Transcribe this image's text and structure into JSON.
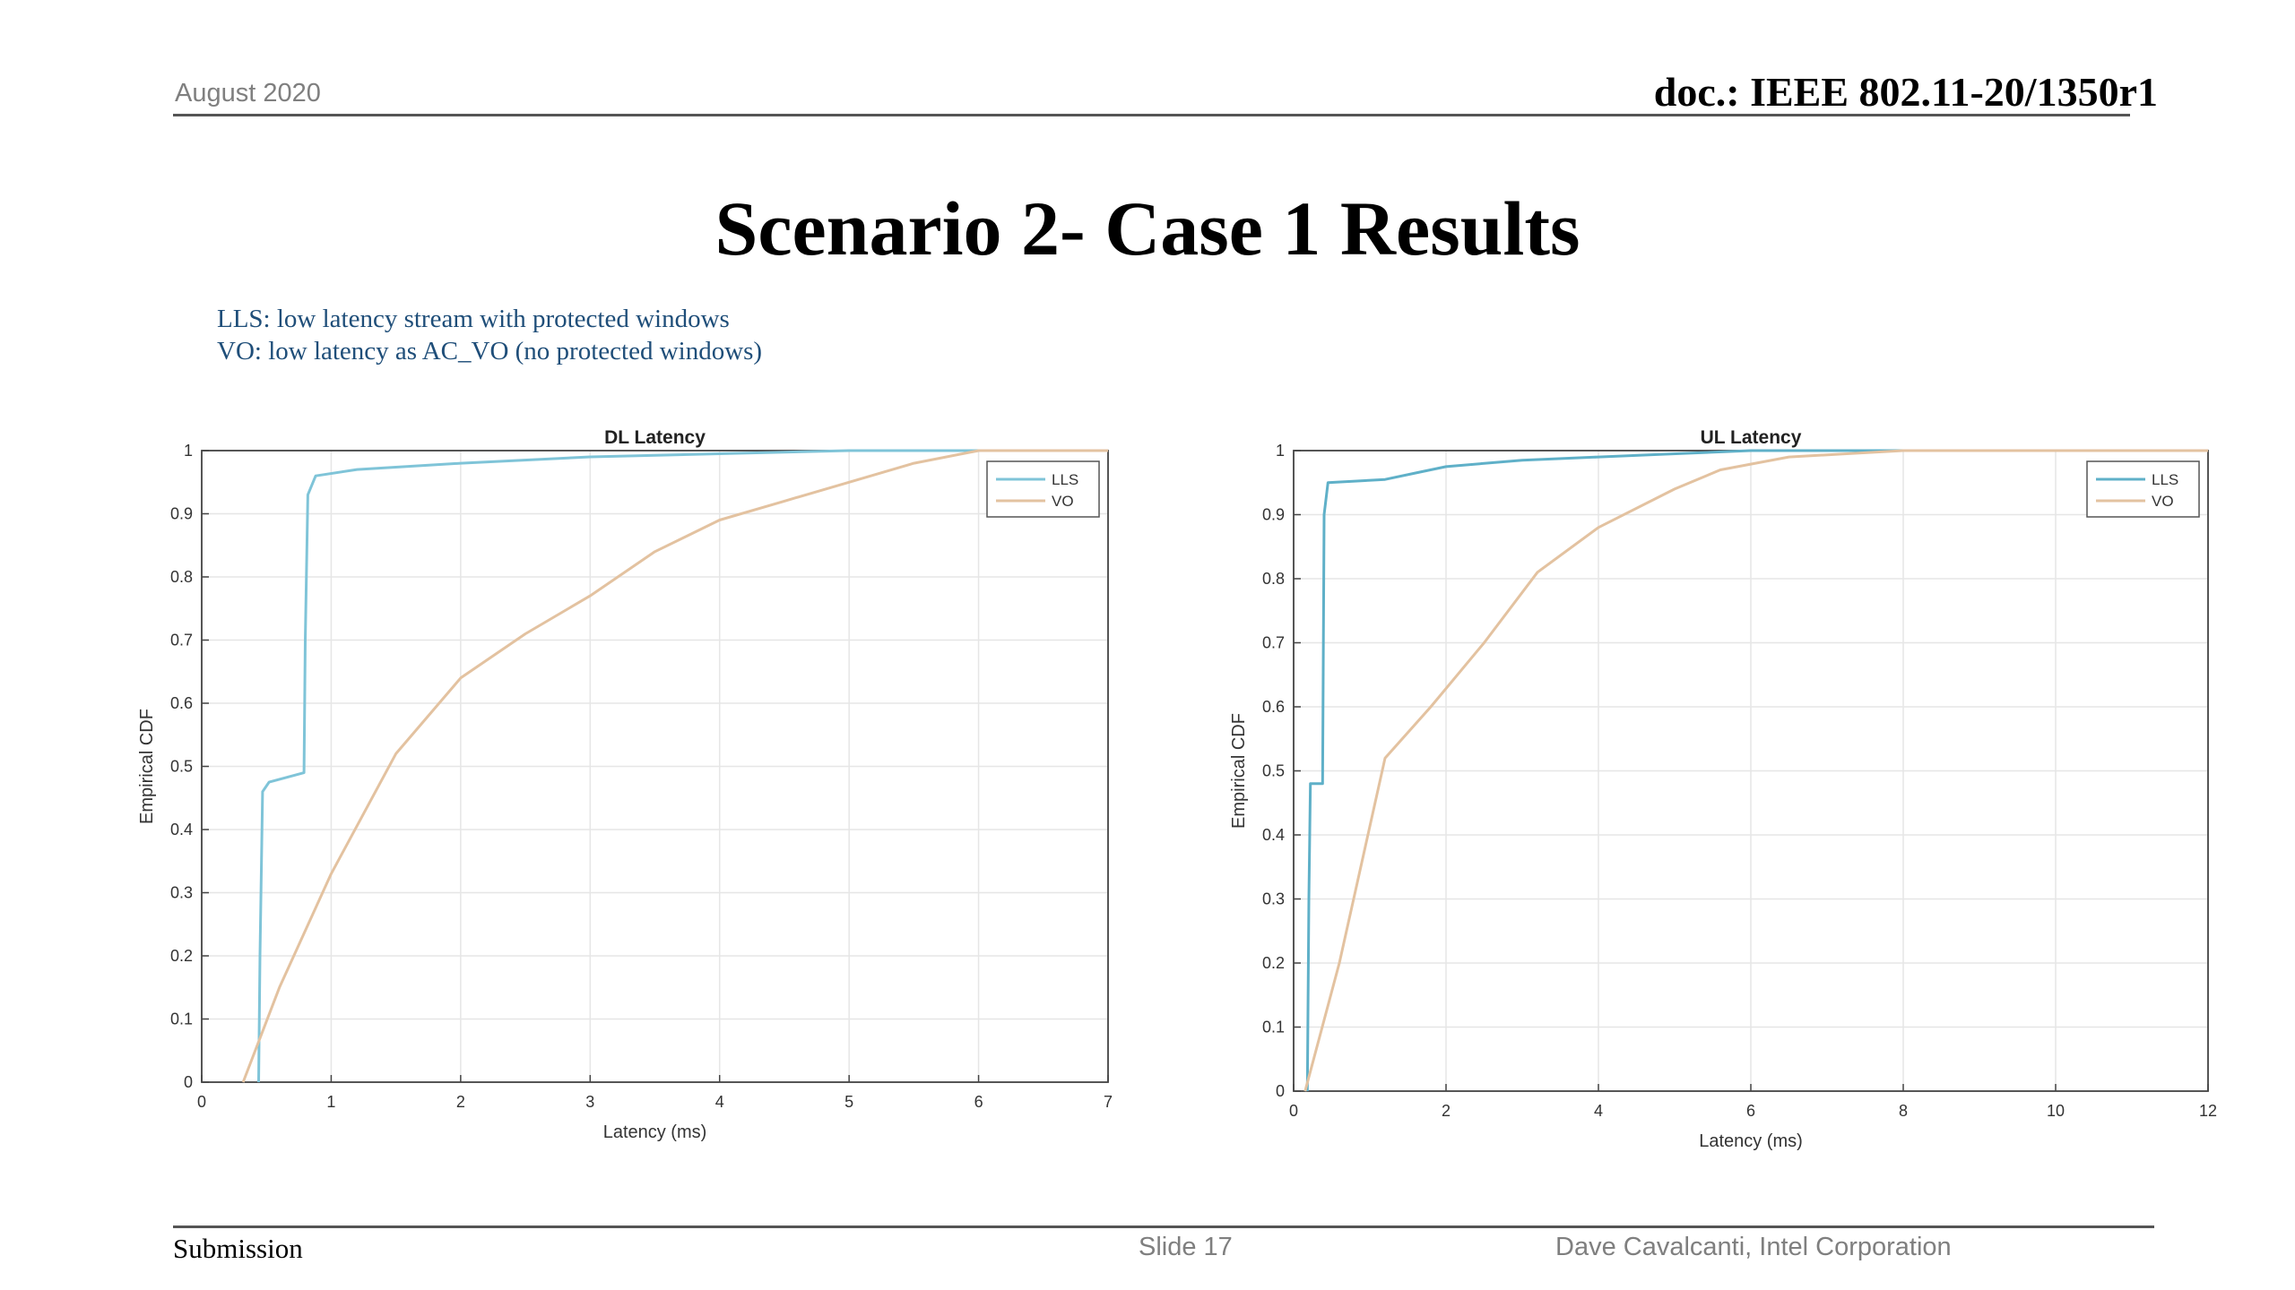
{
  "header": {
    "date": "August 2020",
    "doc_id": "doc.: IEEE 802.11-20/1350r1"
  },
  "slide_title": "Scenario 2- Case 1 Results",
  "legend_note": {
    "line1": "LLS: low latency stream with protected windows",
    "line2": "VO: low latency as AC_VO (no protected windows)"
  },
  "chart_data": [
    {
      "type": "line",
      "title": "DL Latency",
      "xlabel": "Latency (ms)",
      "ylabel": "Empirical CDF",
      "xlim": [
        0,
        7
      ],
      "ylim": [
        0,
        1
      ],
      "xticks": [
        0,
        1,
        2,
        3,
        4,
        5,
        6,
        7
      ],
      "yticks": [
        0,
        0.1,
        0.2,
        0.3,
        0.4,
        0.5,
        0.6,
        0.7,
        0.8,
        0.9,
        1
      ],
      "grid": true,
      "legend_position": "top-right",
      "series": [
        {
          "name": "LLS",
          "color": "#7fc4d8",
          "points": [
            [
              0.44,
              0
            ],
            [
              0.45,
              0.2
            ],
            [
              0.47,
              0.46
            ],
            [
              0.52,
              0.475
            ],
            [
              0.7,
              0.485
            ],
            [
              0.79,
              0.49
            ],
            [
              0.8,
              0.7
            ],
            [
              0.82,
              0.93
            ],
            [
              0.88,
              0.96
            ],
            [
              1.2,
              0.97
            ],
            [
              2,
              0.98
            ],
            [
              3,
              0.99
            ],
            [
              4,
              0.995
            ],
            [
              5,
              1.0
            ],
            [
              7,
              1.0
            ]
          ]
        },
        {
          "name": "VO",
          "color": "#e3c2a0",
          "points": [
            [
              0.32,
              0
            ],
            [
              0.6,
              0.15
            ],
            [
              1.0,
              0.33
            ],
            [
              1.5,
              0.52
            ],
            [
              2.0,
              0.64
            ],
            [
              2.5,
              0.71
            ],
            [
              3.0,
              0.77
            ],
            [
              3.5,
              0.84
            ],
            [
              4.0,
              0.89
            ],
            [
              4.5,
              0.92
            ],
            [
              5.0,
              0.95
            ],
            [
              5.5,
              0.98
            ],
            [
              6.0,
              1.0
            ],
            [
              7,
              1.0
            ]
          ]
        }
      ]
    },
    {
      "type": "line",
      "title": "UL Latency",
      "xlabel": "Latency (ms)",
      "ylabel": "Empirical CDF",
      "xlim": [
        0,
        12
      ],
      "ylim": [
        0,
        1
      ],
      "xticks": [
        0,
        2,
        4,
        6,
        8,
        10,
        12
      ],
      "yticks": [
        0,
        0.1,
        0.2,
        0.3,
        0.4,
        0.5,
        0.6,
        0.7,
        0.8,
        0.9,
        1
      ],
      "grid": true,
      "legend_position": "top-right",
      "series": [
        {
          "name": "LLS",
          "color": "#5fb0c8",
          "points": [
            [
              0.18,
              0
            ],
            [
              0.2,
              0.3
            ],
            [
              0.22,
              0.48
            ],
            [
              0.38,
              0.48
            ],
            [
              0.4,
              0.9
            ],
            [
              0.45,
              0.95
            ],
            [
              1.2,
              0.955
            ],
            [
              1.6,
              0.965
            ],
            [
              2,
              0.975
            ],
            [
              3,
              0.985
            ],
            [
              4,
              0.99
            ],
            [
              6,
              1.0
            ],
            [
              12,
              1.0
            ]
          ]
        },
        {
          "name": "VO",
          "color": "#e3c2a0",
          "points": [
            [
              0.15,
              0
            ],
            [
              0.6,
              0.2
            ],
            [
              1.2,
              0.52
            ],
            [
              1.8,
              0.6
            ],
            [
              2.5,
              0.7
            ],
            [
              3.2,
              0.81
            ],
            [
              4,
              0.88
            ],
            [
              5,
              0.94
            ],
            [
              5.6,
              0.97
            ],
            [
              6.5,
              0.99
            ],
            [
              8,
              1.0
            ],
            [
              12,
              1.0
            ]
          ]
        }
      ]
    }
  ],
  "footer": {
    "submission": "Submission",
    "slide": "Slide 17",
    "author": "Dave Cavalcanti, Intel Corporation"
  }
}
